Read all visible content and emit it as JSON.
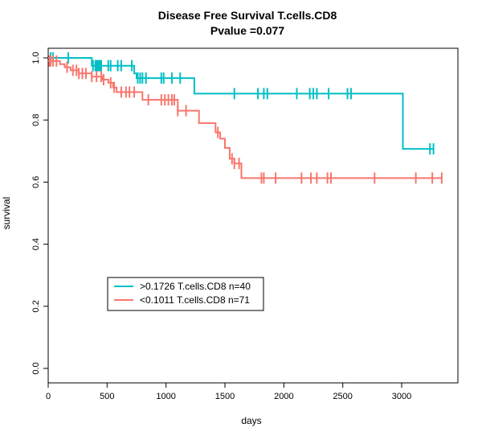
{
  "chart_data": {
    "type": "line",
    "subtype": "kaplan-meier",
    "title": "Disease Free Survival T.cells.CD8",
    "subtitle": "Pvalue =0.077",
    "xlabel": "days",
    "ylabel": "survival",
    "xlim": [
      0,
      3400
    ],
    "ylim": [
      0,
      1.0
    ],
    "x_ticks": [
      0,
      500,
      1000,
      1500,
      2000,
      2500,
      3000
    ],
    "y_ticks": [
      0.0,
      0.2,
      0.4,
      0.6,
      0.8,
      1.0
    ],
    "x_tick_labels": [
      "0",
      "500",
      "1000",
      "1500",
      "2000",
      "2500",
      "3000"
    ],
    "y_tick_labels": [
      "0.0",
      "0.2",
      "0.4",
      "0.6",
      "0.8",
      "1.0"
    ],
    "grid": false,
    "legend_position": "bottom-left",
    "series": [
      {
        "name": ">0.1726 T.cells.CD8 n=40",
        "color": "#00BFC4",
        "steps": [
          [
            0,
            1.0
          ],
          [
            370,
            0.975
          ],
          [
            730,
            0.95
          ],
          [
            750,
            0.935
          ],
          [
            1240,
            0.885
          ],
          [
            3010,
            0.707
          ],
          [
            3270,
            0.707
          ]
        ],
        "censor_times": [
          20,
          40,
          170,
          380,
          400,
          410,
          420,
          430,
          440,
          450,
          510,
          530,
          590,
          620,
          710,
          760,
          780,
          800,
          830,
          960,
          980,
          1050,
          1120,
          1580,
          1780,
          1830,
          1860,
          2110,
          2220,
          2250,
          2280,
          2380,
          2540,
          2570,
          3240,
          3270
        ]
      },
      {
        "name": "<0.1011 T.cells.CD8 n=71",
        "color": "#F8766D",
        "steps": [
          [
            0,
            0.99
          ],
          [
            100,
            0.98
          ],
          [
            140,
            0.97
          ],
          [
            190,
            0.96
          ],
          [
            260,
            0.95
          ],
          [
            370,
            0.94
          ],
          [
            460,
            0.93
          ],
          [
            510,
            0.92
          ],
          [
            550,
            0.905
          ],
          [
            580,
            0.89
          ],
          [
            800,
            0.865
          ],
          [
            1100,
            0.83
          ],
          [
            1280,
            0.79
          ],
          [
            1420,
            0.76
          ],
          [
            1460,
            0.74
          ],
          [
            1500,
            0.71
          ],
          [
            1540,
            0.675
          ],
          [
            1580,
            0.66
          ],
          [
            1640,
            0.613
          ],
          [
            3340,
            0.613
          ]
        ],
        "censor_times": [
          10,
          20,
          40,
          70,
          160,
          210,
          240,
          260,
          290,
          320,
          370,
          410,
          450,
          470,
          530,
          560,
          620,
          660,
          690,
          730,
          850,
          960,
          990,
          1020,
          1050,
          1070,
          1100,
          1170,
          1440,
          1560,
          1580,
          1620,
          1810,
          1830,
          1930,
          2150,
          2230,
          2280,
          2370,
          2400,
          2770,
          3120,
          3260,
          3340
        ]
      }
    ]
  }
}
